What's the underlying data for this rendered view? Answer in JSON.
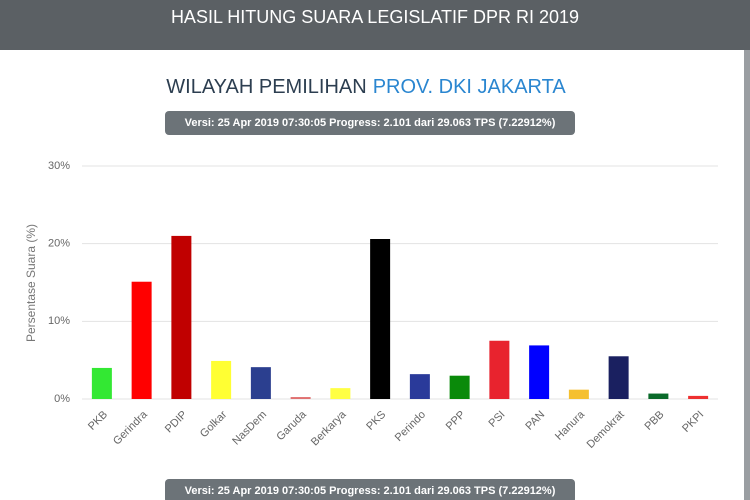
{
  "header": {
    "title": "HASIL HITUNG SUARA LEGISLATIF DPR RI 2019"
  },
  "chart_data": {
    "type": "bar",
    "title": "WILAYAH PEMILIHAN",
    "title_highlight": "PROV. DKI JAKARTA",
    "version_badge": "Versi: 25 Apr 2019 07:30:05 Progress: 2.101 dari 29.063 TPS (7.22912%)",
    "y_label": "Persentase Suara (%)",
    "categories": [
      "PKB",
      "Gerindra",
      "PDIP",
      "Golkar",
      "NasDem",
      "Garuda",
      "Berkarya",
      "PKS",
      "Perindo",
      "PPP",
      "PSI",
      "PAN",
      "Hanura",
      "Demokrat",
      "PBB",
      "PKPI"
    ],
    "values": [
      4.0,
      15.1,
      21.0,
      4.9,
      4.1,
      0.25,
      1.4,
      20.6,
      3.2,
      3.0,
      7.5,
      6.9,
      1.2,
      5.5,
      0.7,
      0.4
    ],
    "colors": [
      "#33e833",
      "#ff0000",
      "#c00000",
      "#ffff33",
      "#2b3f8f",
      "#e07070",
      "#ffff44",
      "#000000",
      "#2a3a9a",
      "#0a8a0a",
      "#e8232e",
      "#0000ff",
      "#f5c030",
      "#1a2060",
      "#0a6a2a",
      "#ee3030"
    ],
    "ylim": [
      0,
      30
    ],
    "yticks": [
      {
        "value": 0,
        "label": "0%"
      },
      {
        "value": 10,
        "label": "10%"
      },
      {
        "value": 20,
        "label": "20%"
      },
      {
        "value": 30,
        "label": "30%"
      }
    ],
    "grid": true
  }
}
